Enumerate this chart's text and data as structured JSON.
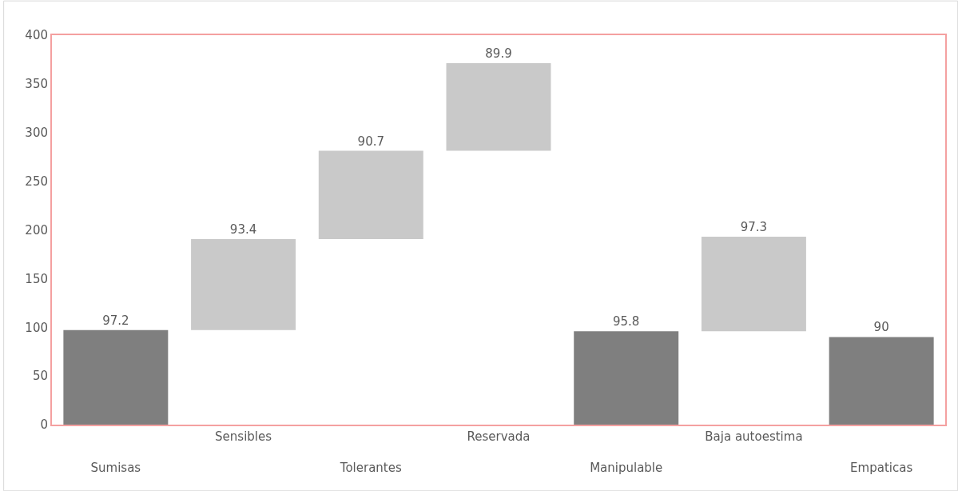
{
  "chart_data": {
    "type": "bar",
    "categories": [
      "Sumisas",
      "Sensibles",
      "Tolerantes",
      "Reservada",
      "Manipulable",
      "Baja autoestima",
      "Empaticas"
    ],
    "values": [
      97.2,
      93.4,
      90.7,
      89.9,
      95.8,
      97.3,
      90
    ],
    "base": [
      0,
      97.2,
      190.6,
      281.3,
      0,
      95.8,
      0
    ],
    "colors": [
      "#7f7f7f",
      "#c9c9c9",
      "#c9c9c9",
      "#c9c9c9",
      "#7f7f7f",
      "#c9c9c9",
      "#7f7f7f"
    ],
    "ylim": [
      0,
      400
    ],
    "yticks": [
      0,
      50,
      100,
      150,
      200,
      250,
      300,
      350,
      400
    ],
    "data_labels": true
  }
}
